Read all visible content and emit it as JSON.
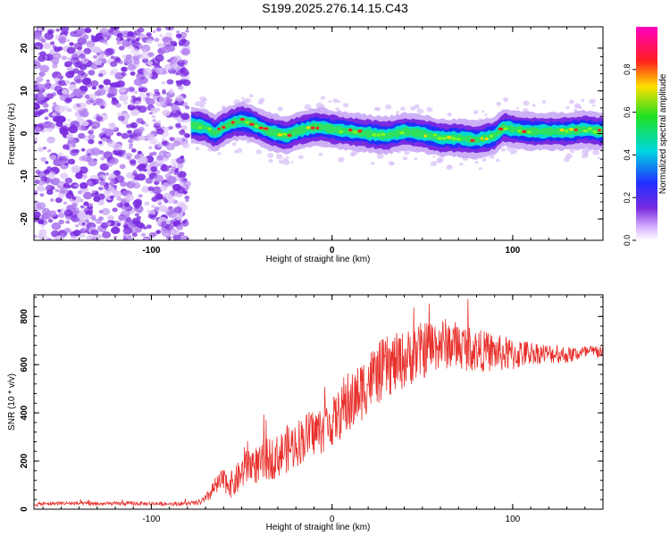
{
  "title": "S199.2025.276.14.15.C43",
  "colors": {
    "signal_line": "#e8312c",
    "band_low": "#7a2be0",
    "band_mid": "#00d9d0",
    "band_high": "#ff2020",
    "axis": "#000000"
  },
  "chart_data": [
    {
      "type": "heatmap",
      "title": "",
      "xlabel": "Height of straight line (km)",
      "ylabel": "Frequency (Hz)",
      "xlim": [
        -165,
        150
      ],
      "ylim": [
        -25,
        25
      ],
      "x_ticks": [
        -100,
        0,
        100
      ],
      "y_ticks": [
        -20,
        -10,
        0,
        10,
        20
      ],
      "colorbar": {
        "label": "Normalized spectral amplitude",
        "range": [
          0,
          1
        ],
        "ticks": [
          0.0,
          0.2,
          0.4,
          0.6,
          0.8
        ],
        "colormap": "rainbow (purple-blue-cyan-green-yellow-red-magenta)"
      },
      "regions": [
        {
          "name": "noise",
          "x_range": [
            -165,
            -80
          ],
          "y_range": [
            -25,
            25
          ],
          "amplitude": "low (purple speckle)"
        },
        {
          "name": "signal band",
          "x_range": [
            -78,
            150
          ],
          "center_freq_hz": 0.5,
          "half_width_hz": 2,
          "amplitude": "high"
        }
      ],
      "band_center_trace": {
        "x": [
          -78,
          -70,
          -65,
          -60,
          -55,
          -50,
          -45,
          -40,
          -35,
          -30,
          -25,
          -20,
          -15,
          -10,
          -5,
          0,
          10,
          20,
          30,
          40,
          50,
          60,
          70,
          80,
          90,
          95,
          100,
          110,
          120,
          130,
          140,
          148
        ],
        "y": [
          2,
          1.5,
          0,
          1.5,
          2.5,
          3,
          2.5,
          1.5,
          0.5,
          0,
          -0.5,
          0.5,
          1,
          1.5,
          1.5,
          1,
          0.5,
          0,
          -0.5,
          0.5,
          0,
          -1,
          -1,
          -1.5,
          -0.5,
          1.5,
          1,
          0.5,
          0.5,
          0.5,
          1,
          0.5
        ]
      }
    },
    {
      "type": "line",
      "title": "",
      "xlabel": "Height of straight line (km)",
      "ylabel": "SNR (10 * v/v)",
      "xlim": [
        -165,
        150
      ],
      "ylim": [
        0,
        890
      ],
      "x_ticks": [
        -100,
        0,
        100
      ],
      "y_ticks": [
        0,
        200,
        400,
        600,
        800
      ],
      "series": [
        {
          "name": "SNR",
          "x": [
            -165,
            -150,
            -130,
            -110,
            -90,
            -75,
            -70,
            -65,
            -60,
            -55,
            -50,
            -45,
            -40,
            -35,
            -30,
            -25,
            -20,
            -15,
            -10,
            -5,
            0,
            5,
            10,
            15,
            20,
            25,
            30,
            40,
            50,
            60,
            70,
            80,
            90,
            100,
            110,
            120,
            130,
            140,
            150
          ],
          "values": [
            20,
            25,
            22,
            24,
            22,
            25,
            40,
            90,
            120,
            100,
            150,
            190,
            180,
            210,
            220,
            250,
            270,
            300,
            320,
            330,
            360,
            400,
            430,
            480,
            530,
            560,
            590,
            620,
            660,
            690,
            680,
            660,
            650,
            640,
            650,
            645,
            640,
            650,
            655
          ],
          "noise_amplitude": [
            8,
            8,
            8,
            8,
            8,
            10,
            20,
            40,
            50,
            60,
            70,
            80,
            80,
            90,
            90,
            100,
            100,
            100,
            100,
            100,
            100,
            110,
            120,
            130,
            130,
            130,
            130,
            120,
            120,
            110,
            100,
            90,
            80,
            70,
            50,
            40,
            35,
            30,
            30
          ]
        }
      ]
    }
  ]
}
